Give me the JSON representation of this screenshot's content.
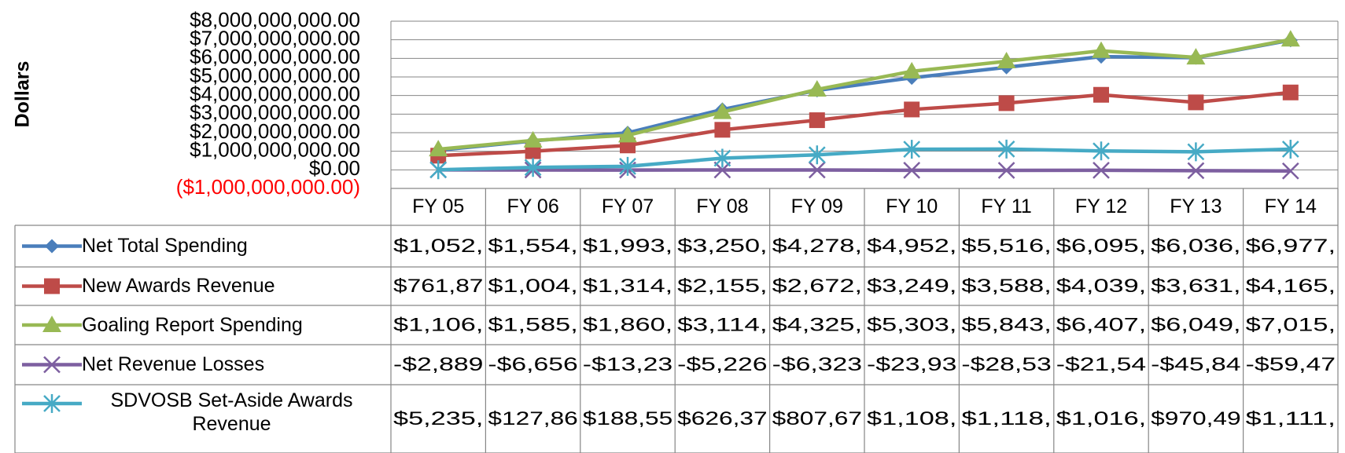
{
  "chart_data": {
    "type": "line",
    "y_axis_label": "Dollars",
    "categories": [
      "FY 05",
      "FY 06",
      "FY 07",
      "FY 08",
      "FY 09",
      "FY 10",
      "FY 11",
      "FY 12",
      "FY 13",
      "FY 14"
    ],
    "ylim": [
      -1000000000,
      8000000000
    ],
    "yticks": [
      {
        "value": -1000000000,
        "label": "($1,000,000,000.00)"
      },
      {
        "value": 0,
        "label": "$0.00"
      },
      {
        "value": 1000000000,
        "label": "$1,000,000,000.00"
      },
      {
        "value": 2000000000,
        "label": "$2,000,000,000.00"
      },
      {
        "value": 3000000000,
        "label": "$3,000,000,000.00"
      },
      {
        "value": 4000000000,
        "label": "$4,000,000,000.00"
      },
      {
        "value": 5000000000,
        "label": "$5,000,000,000.00"
      },
      {
        "value": 6000000000,
        "label": "$6,000,000,000.00"
      },
      {
        "value": 7000000000,
        "label": "$7,000,000,000.00"
      },
      {
        "value": 8000000000,
        "label": "$8,000,000,000.00"
      }
    ],
    "negative_tick_color": "#ff0000",
    "grid": true,
    "series": [
      {
        "name": "Net Total Spending",
        "color": "#4a7ebb",
        "marker": "diamond",
        "values": [
          1052000000,
          1554000000,
          1993000000,
          3250000000,
          4278000000,
          4952000000,
          5516000000,
          6095000000,
          6036000000,
          6977000000
        ],
        "value_labels": [
          "$1,052,",
          "$1,554,",
          "$1,993,",
          "$3,250,",
          "$4,278,",
          "$4,952,",
          "$5,516,",
          "$6,095,",
          "$6,036,",
          "$6,977,"
        ]
      },
      {
        "name": "New Awards Revenue",
        "color": "#be4b48",
        "marker": "square",
        "values": [
          761870000,
          1004000000,
          1314000000,
          2155000000,
          2672000000,
          3249000000,
          3588000000,
          4039000000,
          3631000000,
          4165000000
        ],
        "value_labels": [
          "$761,87",
          "$1,004,",
          "$1,314,",
          "$2,155,",
          "$2,672,",
          "$3,249,",
          "$3,588,",
          "$4,039,",
          "$3,631,",
          "$4,165,"
        ]
      },
      {
        "name": "Goaling Report Spending",
        "color": "#98b954",
        "marker": "triangle",
        "values": [
          1106000000,
          1585000000,
          1860000000,
          3114000000,
          4325000000,
          5303000000,
          5843000000,
          6407000000,
          6049000000,
          7015000000
        ],
        "value_labels": [
          "$1,106,",
          "$1,585,",
          "$1,860,",
          "$3,114,",
          "$4,325,",
          "$5,303,",
          "$5,843,",
          "$6,407,",
          "$6,049,",
          "$7,015,"
        ]
      },
      {
        "name": "Net Revenue Losses",
        "color": "#7d5fa0",
        "marker": "x",
        "values": [
          -2889000,
          -6656000,
          -13230000,
          -5226000,
          -6323000,
          -23930000,
          -28530000,
          -21540000,
          -45840000,
          -59470000
        ],
        "value_labels": [
          "-$2,889",
          "-$6,656",
          "-$13,23",
          "-$5,226",
          "-$6,323",
          "-$23,93",
          "-$28,53",
          "-$21,54",
          "-$45,84",
          "-$59,47"
        ]
      },
      {
        "name": "SDVOSB Set-Aside Awards Revenue",
        "color": "#46aac5",
        "marker": "star",
        "values": [
          5235000,
          127860000,
          188550000,
          626370000,
          807670000,
          1108000000,
          1118000000,
          1016000000,
          970490000,
          1111000000
        ],
        "value_labels": [
          "$5,235,",
          "$127,86",
          "$188,55",
          "$626,37",
          "$807,67",
          "$1,108,",
          "$1,118,",
          "$1,016,",
          "$970,49",
          "$1,111,"
        ]
      }
    ]
  }
}
